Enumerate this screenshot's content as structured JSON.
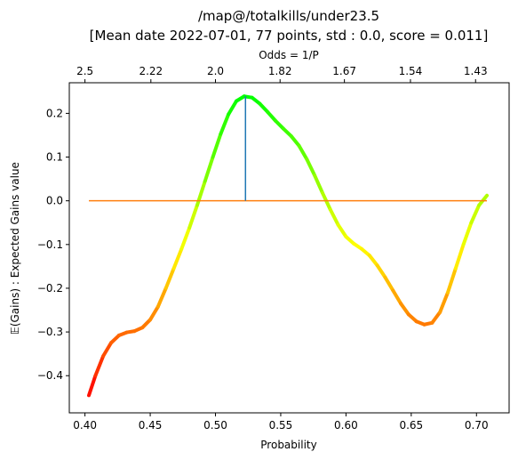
{
  "chart_data": {
    "type": "line",
    "title": "/map@/totalkills/under23.5",
    "subtitle": "[Mean date 2022-07-01, 77 points, std : 0.0, score = 0.011]",
    "xlabel": "Probability",
    "ylabel": "𝔼(Gains) : Expected Gains value",
    "top_xlabel": "Odds = 1/P",
    "xlim": [
      0.388,
      0.725
    ],
    "ylim": [
      -0.485,
      0.27
    ],
    "x_ticks": [
      0.4,
      0.45,
      0.5,
      0.55,
      0.6,
      0.65,
      0.7
    ],
    "x_tick_labels": [
      "0.40",
      "0.45",
      "0.50",
      "0.55",
      "0.60",
      "0.65",
      "0.70"
    ],
    "y_ticks": [
      -0.4,
      -0.3,
      -0.2,
      -0.1,
      0.0,
      0.1,
      0.2
    ],
    "y_tick_labels": [
      "−0.4",
      "−0.3",
      "−0.2",
      "−0.1",
      "0.0",
      "0.1",
      "0.2"
    ],
    "top_ticks": [
      {
        "x": 0.4,
        "label": "2.5"
      },
      {
        "x": 0.4505,
        "label": "2.22"
      },
      {
        "x": 0.5,
        "label": "2.0"
      },
      {
        "x": 0.5495,
        "label": "1.82"
      },
      {
        "x": 0.5988,
        "label": "1.67"
      },
      {
        "x": 0.6494,
        "label": "1.54"
      },
      {
        "x": 0.6993,
        "label": "1.43"
      }
    ],
    "grid": false,
    "series": [
      {
        "style": "gradient red-to-green by value",
        "points": [
          [
            0.403,
            -0.445
          ],
          [
            0.408,
            -0.4
          ],
          [
            0.414,
            -0.355
          ],
          [
            0.42,
            -0.325
          ],
          [
            0.426,
            -0.308
          ],
          [
            0.432,
            -0.301
          ],
          [
            0.438,
            -0.298
          ],
          [
            0.444,
            -0.29
          ],
          [
            0.45,
            -0.272
          ],
          [
            0.456,
            -0.242
          ],
          [
            0.462,
            -0.2
          ],
          [
            0.468,
            -0.155
          ],
          [
            0.474,
            -0.11
          ],
          [
            0.48,
            -0.062
          ],
          [
            0.486,
            -0.01
          ],
          [
            0.492,
            0.045
          ],
          [
            0.498,
            0.1
          ],
          [
            0.504,
            0.153
          ],
          [
            0.51,
            0.198
          ],
          [
            0.516,
            0.228
          ],
          [
            0.522,
            0.239
          ],
          [
            0.528,
            0.236
          ],
          [
            0.534,
            0.222
          ],
          [
            0.54,
            0.203
          ],
          [
            0.546,
            0.183
          ],
          [
            0.552,
            0.165
          ],
          [
            0.558,
            0.148
          ],
          [
            0.564,
            0.126
          ],
          [
            0.57,
            0.095
          ],
          [
            0.576,
            0.058
          ],
          [
            0.582,
            0.018
          ],
          [
            0.588,
            -0.02
          ],
          [
            0.594,
            -0.055
          ],
          [
            0.6,
            -0.082
          ],
          [
            0.606,
            -0.098
          ],
          [
            0.612,
            -0.11
          ],
          [
            0.618,
            -0.125
          ],
          [
            0.624,
            -0.148
          ],
          [
            0.63,
            -0.175
          ],
          [
            0.636,
            -0.205
          ],
          [
            0.642,
            -0.235
          ],
          [
            0.648,
            -0.26
          ],
          [
            0.654,
            -0.276
          ],
          [
            0.66,
            -0.283
          ],
          [
            0.666,
            -0.279
          ],
          [
            0.672,
            -0.255
          ],
          [
            0.678,
            -0.21
          ],
          [
            0.684,
            -0.155
          ],
          [
            0.69,
            -0.1
          ],
          [
            0.696,
            -0.05
          ],
          [
            0.702,
            -0.01
          ],
          [
            0.708,
            0.012
          ]
        ]
      },
      {
        "style": "flat reference line",
        "color": "#ff7f0e",
        "points": [
          [
            0.403,
            0.0
          ],
          [
            0.708,
            0.0
          ]
        ]
      },
      {
        "style": "vertical marker",
        "color": "#1f77b4",
        "points": [
          [
            0.523,
            0.0
          ],
          [
            0.523,
            0.239
          ]
        ]
      }
    ]
  }
}
